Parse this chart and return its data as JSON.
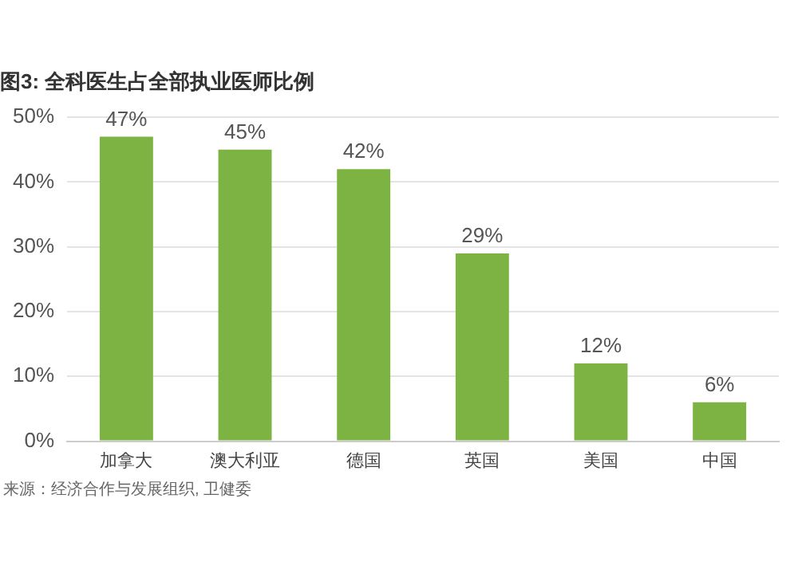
{
  "chart_data": {
    "type": "bar",
    "title": "图3: 全科医生占全部执业医师比例",
    "categories": [
      "加拿大",
      "澳大利亚",
      "德国",
      "英国",
      "美国",
      "中国"
    ],
    "values": [
      47,
      45,
      42,
      29,
      12,
      6
    ],
    "value_labels": [
      "47%",
      "45%",
      "42%",
      "29%",
      "12%",
      "6%"
    ],
    "color": "#7cb342",
    "ylim": [
      0,
      50
    ],
    "yticks": [
      {
        "value": 0,
        "label": "0%"
      },
      {
        "value": 10,
        "label": "10%"
      },
      {
        "value": 20,
        "label": "20%"
      },
      {
        "value": 30,
        "label": "30%"
      },
      {
        "value": 40,
        "label": "40%"
      },
      {
        "value": 50,
        "label": "50%"
      }
    ],
    "grid": "y",
    "annotations": [
      "来源：经济合作与发展组织, 卫健委"
    ]
  }
}
